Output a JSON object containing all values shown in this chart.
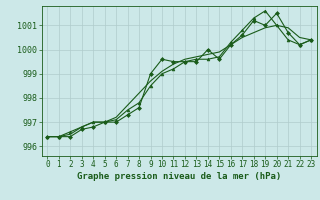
{
  "title": "Graphe pression niveau de la mer (hPa)",
  "background_color": "#cce8e8",
  "grid_color": "#b0cccc",
  "line_color": "#1a5c1a",
  "x_ticks": [
    0,
    1,
    2,
    3,
    4,
    5,
    6,
    7,
    8,
    9,
    10,
    11,
    12,
    13,
    14,
    15,
    16,
    17,
    18,
    19,
    20,
    21,
    22,
    23
  ],
  "ylim": [
    995.6,
    1001.8
  ],
  "yticks": [
    996,
    997,
    998,
    999,
    1000,
    1001
  ],
  "series1": [
    996.4,
    996.4,
    996.4,
    996.7,
    996.8,
    997.0,
    997.0,
    997.3,
    997.6,
    999.0,
    999.6,
    999.5,
    999.5,
    999.5,
    1000.0,
    999.6,
    1000.2,
    1000.6,
    1001.2,
    1001.0,
    1001.5,
    1000.7,
    1000.2,
    1000.4
  ],
  "series2": [
    996.4,
    996.4,
    996.6,
    996.8,
    997.0,
    997.0,
    997.1,
    997.5,
    997.8,
    998.5,
    999.0,
    999.2,
    999.5,
    999.6,
    999.6,
    999.7,
    1000.3,
    1000.8,
    1001.3,
    1001.6,
    1001.0,
    1000.4,
    1000.2,
    1000.4
  ],
  "series3": [
    996.4,
    996.4,
    996.5,
    996.8,
    997.0,
    997.0,
    997.2,
    997.7,
    998.2,
    998.7,
    999.1,
    999.4,
    999.6,
    999.7,
    999.8,
    999.9,
    1000.2,
    1000.5,
    1000.7,
    1000.9,
    1001.0,
    1000.9,
    1000.5,
    1000.4
  ],
  "title_fontsize": 6.5,
  "tick_fontsize": 5.5,
  "linewidth": 0.8,
  "markersize": 2.0
}
